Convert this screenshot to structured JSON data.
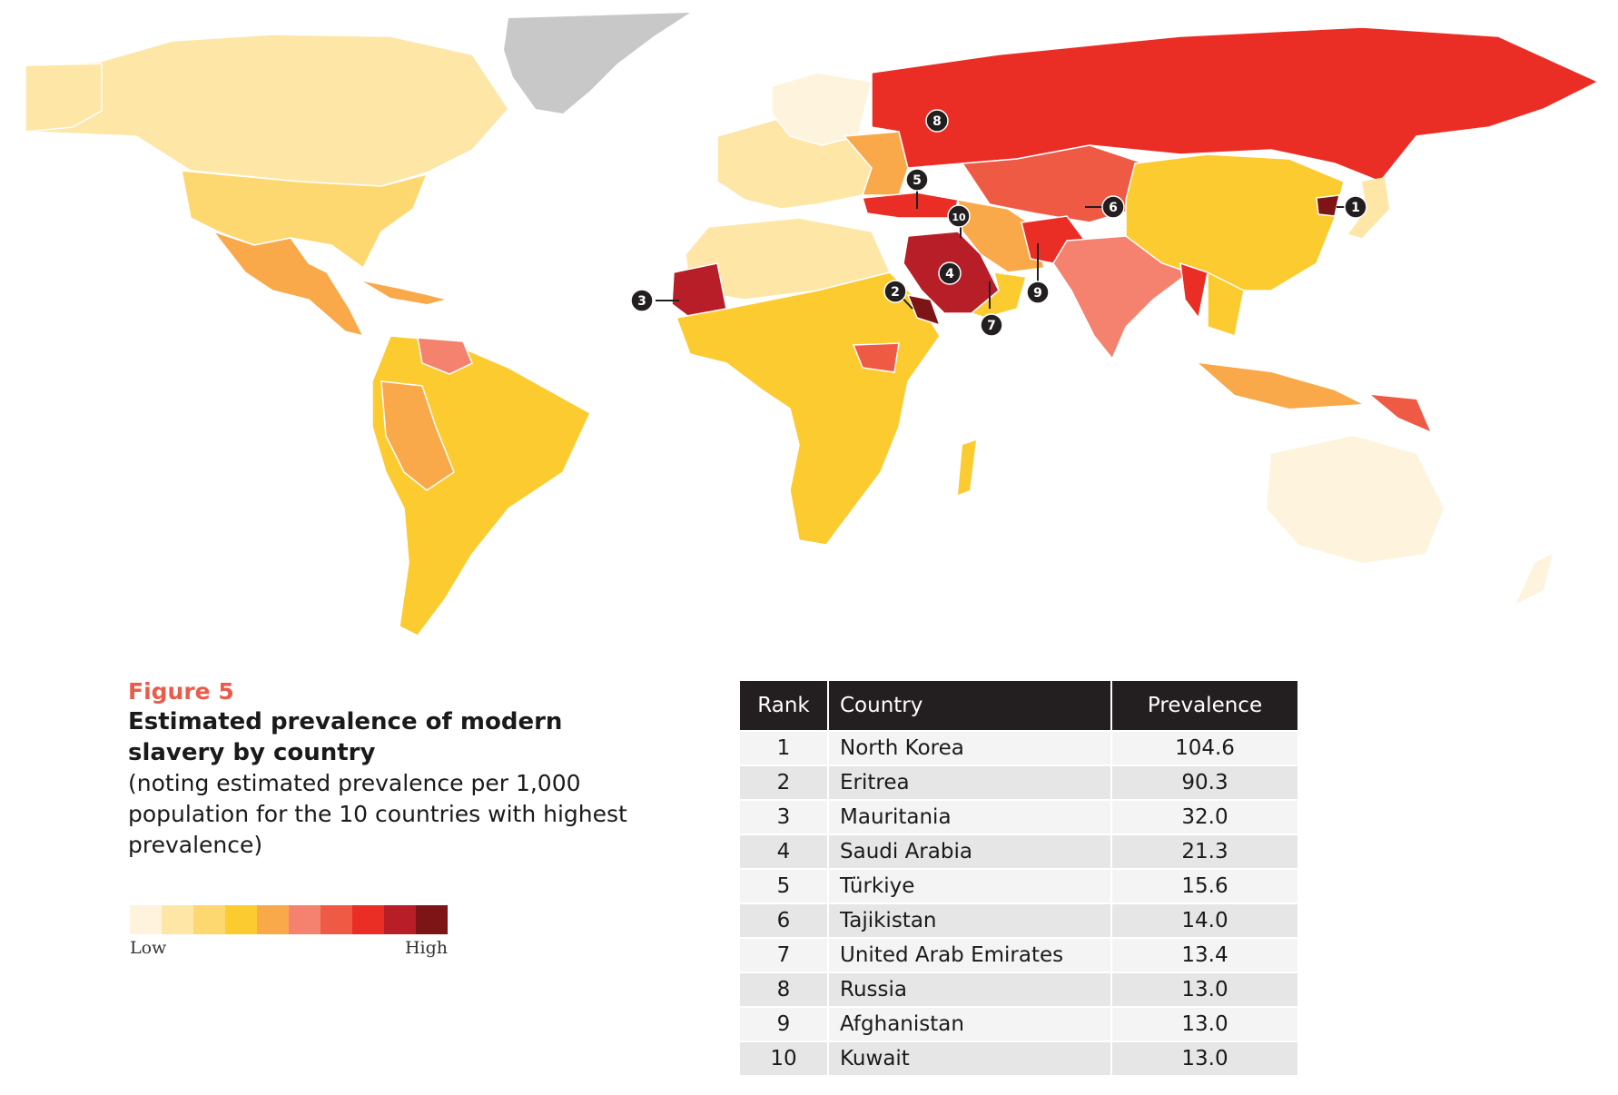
{
  "figure": {
    "number_label": "Figure 5",
    "title": "Estimated prevalence of modern slavery by country",
    "subtitle": "(noting estimated prevalence per 1,000 population for the 10 countries with highest prevalence)"
  },
  "legend": {
    "low_label": "Low",
    "high_label": "High",
    "scale_colors": [
      "#fef4dd",
      "#fde6a6",
      "#fdd870",
      "#fccb30",
      "#f9a94a",
      "#f4826e",
      "#ef5a45",
      "#ea2e26",
      "#b81e28",
      "#7d1416"
    ]
  },
  "colors": {
    "no_data": "#c8c8c8",
    "marker": "#231f20",
    "title_accent": "#ea5b4b"
  },
  "map": {
    "markers": [
      {
        "rank": "1",
        "country": "North Korea"
      },
      {
        "rank": "2",
        "country": "Eritrea"
      },
      {
        "rank": "3",
        "country": "Mauritania"
      },
      {
        "rank": "4",
        "country": "Saudi Arabia"
      },
      {
        "rank": "5",
        "country": "Türkiye"
      },
      {
        "rank": "6",
        "country": "Tajikistan"
      },
      {
        "rank": "7",
        "country": "United Arab Emirates"
      },
      {
        "rank": "8",
        "country": "Russia"
      },
      {
        "rank": "9",
        "country": "Afghanistan"
      },
      {
        "rank": "10",
        "country": "Kuwait"
      }
    ]
  },
  "table": {
    "headers": {
      "rank": "Rank",
      "country": "Country",
      "prevalence": "Prevalence"
    },
    "rows": [
      {
        "rank": "1",
        "country": "North Korea",
        "prevalence": "104.6"
      },
      {
        "rank": "2",
        "country": "Eritrea",
        "prevalence": "90.3"
      },
      {
        "rank": "3",
        "country": "Mauritania",
        "prevalence": "32.0"
      },
      {
        "rank": "4",
        "country": "Saudi Arabia",
        "prevalence": "21.3"
      },
      {
        "rank": "5",
        "country": "Türkiye",
        "prevalence": "15.6"
      },
      {
        "rank": "6",
        "country": "Tajikistan",
        "prevalence": "14.0"
      },
      {
        "rank": "7",
        "country": "United Arab Emirates",
        "prevalence": "13.4"
      },
      {
        "rank": "8",
        "country": "Russia",
        "prevalence": "13.0"
      },
      {
        "rank": "9",
        "country": "Afghanistan",
        "prevalence": "13.0"
      },
      {
        "rank": "10",
        "country": "Kuwait",
        "prevalence": "13.0"
      }
    ]
  }
}
